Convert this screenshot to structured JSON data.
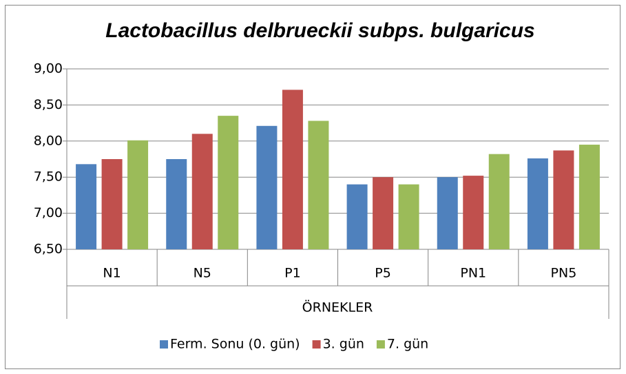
{
  "chart_data": {
    "type": "bar",
    "title": "Lactobacillus delbrueckii subps. bulgaricus",
    "x_label": "ÖRNEKLER",
    "categories": [
      "N1",
      "N5",
      "P1",
      "P5",
      "PN1",
      "PN5"
    ],
    "series": [
      {
        "name": "Ferm. Sonu (0. gün)",
        "color": "#4f81bd",
        "values": [
          7.68,
          7.75,
          8.21,
          7.4,
          7.5,
          7.76
        ]
      },
      {
        "name": "3. gün",
        "color": "#c0504d",
        "values": [
          7.75,
          8.1,
          8.71,
          7.5,
          7.52,
          7.87
        ]
      },
      {
        "name": "7. gün",
        "color": "#9bbb59",
        "values": [
          8.01,
          8.35,
          8.28,
          7.4,
          7.82,
          7.95
        ]
      }
    ],
    "ylim": [
      6.5,
      9.0
    ],
    "yticks": [
      {
        "value": 6.5,
        "label": "6,50"
      },
      {
        "value": 7.0,
        "label": "7,00"
      },
      {
        "value": 7.5,
        "label": "7,50"
      },
      {
        "value": 8.0,
        "label": "8,00"
      },
      {
        "value": 8.5,
        "label": "8,50"
      },
      {
        "value": 9.0,
        "label": "9,00"
      }
    ],
    "grid": true,
    "legend": "bottom"
  }
}
